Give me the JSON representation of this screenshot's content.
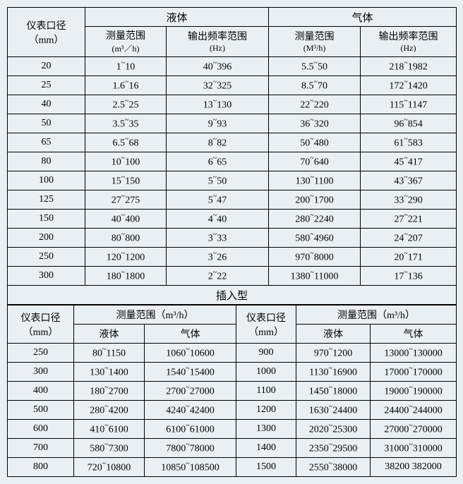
{
  "headers": {
    "col1_line1": "仪表口径",
    "col1_unit": "（mm）",
    "liquid": "液体",
    "gas": "气体",
    "measure_range": "测量范围",
    "output_freq": "输出频率范围",
    "unit_m3h_l": "(m³／h)",
    "unit_hz": "(Hz)",
    "unit_m3h_g": "(M³/h)",
    "insert_type": "插入型",
    "measure_range_m3h": "测量范围（m³/h）"
  },
  "table1": [
    {
      "d": "20",
      "lr": "1~10",
      "lf": "40~396",
      "gr": "5.5~50",
      "gf": "218~1982"
    },
    {
      "d": "25",
      "lr": "1.6~16",
      "lf": "32~325",
      "gr": "8.5~70",
      "gf": "172~1420"
    },
    {
      "d": "40",
      "lr": "2.5~25",
      "lf": "13~130",
      "gr": "22~220",
      "gf": "115~1147"
    },
    {
      "d": "50",
      "lr": "3.5~35",
      "lf": "9~93",
      "gr": "36~320",
      "gf": "96~854"
    },
    {
      "d": "65",
      "lr": "6.5~68",
      "lf": "8~82",
      "gr": "50~480",
      "gf": "61~583"
    },
    {
      "d": "80",
      "lr": "10~100",
      "lf": "6~65",
      "gr": "70~640",
      "gf": "45~417"
    },
    {
      "d": "100",
      "lr": "15~150",
      "lf": "5~50",
      "gr": "130~1100",
      "gf": "43~367"
    },
    {
      "d": "125",
      "lr": "27~275",
      "lf": "5~47",
      "gr": "200~1700",
      "gf": "33~290"
    },
    {
      "d": "150",
      "lr": "40~400",
      "lf": "4~40",
      "gr": "280~2240",
      "gf": "27~221"
    },
    {
      "d": "200",
      "lr": "80~800",
      "lf": "3~33",
      "gr": "580~4960",
      "gf": "24~207"
    },
    {
      "d": "250",
      "lr": "120~1200",
      "lf": "3~26",
      "gr": "970~8000",
      "gf": "20~171"
    },
    {
      "d": "300",
      "lr": "180~1800",
      "lf": "2~22",
      "gr": "1380~11000",
      "gf": "17~136"
    }
  ],
  "table2": [
    {
      "d1": "250",
      "l1": "80~1150",
      "g1": "1060~10600",
      "d2": "900",
      "l2": "970~1200",
      "g2": "13000~130000"
    },
    {
      "d1": "300",
      "l1": "130~1400",
      "g1": "1540~15400",
      "d2": "1000",
      "l2": "1130~16900",
      "g2": "17000~170000"
    },
    {
      "d1": "400",
      "l1": "180~2700",
      "g1": "2700~27000",
      "d2": "1100",
      "l2": "1450~18000",
      "g2": "19000~190000"
    },
    {
      "d1": "500",
      "l1": "280~4200",
      "g1": "4240~42400",
      "d2": "1200",
      "l2": "1630~24400",
      "g2": "24400~244000"
    },
    {
      "d1": "600",
      "l1": "410~6100",
      "g1": "6100~61000",
      "d2": "1300",
      "l2": "2020~25300",
      "g2": "27000~270000"
    },
    {
      "d1": "700",
      "l1": "580~7300",
      "g1": "7800~78000",
      "d2": "1400",
      "l2": "2350~29500",
      "g2": "31000~310000"
    },
    {
      "d1": "800",
      "l1": "720~10800",
      "g1": "10850~108500",
      "d2": "1500",
      "l2": "2550~38000",
      "g2": "38200 382000"
    }
  ]
}
